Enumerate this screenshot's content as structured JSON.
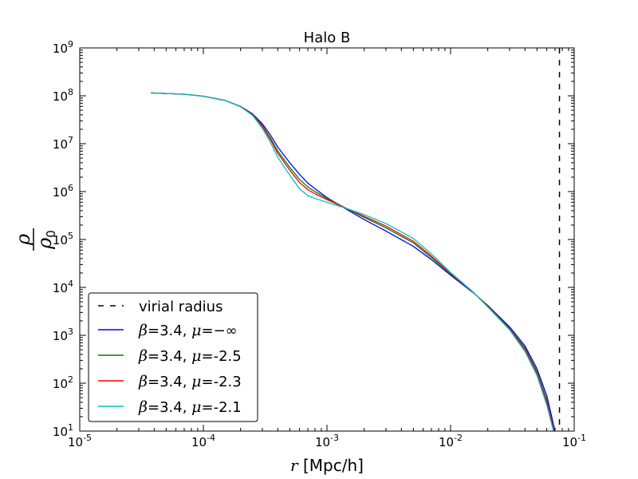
{
  "chart_data": {
    "type": "line",
    "title": "Halo B",
    "xlabel": {
      "symbol": "r",
      "text": " [Mpc/h]"
    },
    "ylabel": {
      "numerator": "ρ",
      "denominator": "ρ",
      "denominator_sub": "0"
    },
    "xscale": "log",
    "yscale": "log",
    "xlim": [
      1e-05,
      0.1
    ],
    "ylim": [
      10,
      1000000000
    ],
    "x_ticks": [
      {
        "base": "10",
        "exp": "-5",
        "value": 1e-05
      },
      {
        "base": "10",
        "exp": "-4",
        "value": 0.0001
      },
      {
        "base": "10",
        "exp": "-3",
        "value": 0.001
      },
      {
        "base": "10",
        "exp": "-2",
        "value": 0.01
      },
      {
        "base": "10",
        "exp": "-1",
        "value": 0.1
      }
    ],
    "y_ticks": [
      {
        "base": "10",
        "exp": "1",
        "value": 10
      },
      {
        "base": "10",
        "exp": "2",
        "value": 100
      },
      {
        "base": "10",
        "exp": "3",
        "value": 1000
      },
      {
        "base": "10",
        "exp": "4",
        "value": 10000
      },
      {
        "base": "10",
        "exp": "5",
        "value": 100000
      },
      {
        "base": "10",
        "exp": "6",
        "value": 1000000
      },
      {
        "base": "10",
        "exp": "7",
        "value": 10000000
      },
      {
        "base": "10",
        "exp": "8",
        "value": 100000000
      },
      {
        "base": "10",
        "exp": "9",
        "value": 1000000000
      }
    ],
    "grid": false,
    "legend_position": "bottom-left",
    "vline": {
      "name": "virial radius",
      "x": 0.076,
      "style": "dashed",
      "color": "#000000"
    },
    "series": [
      {
        "name": "β=3.4, μ=−∞",
        "label_parts": {
          "beta": "β",
          "beta_val": "=3.4, ",
          "mu": "μ",
          "mu_val": "=−∞"
        },
        "color": "#0000ff",
        "points": [
          [
            3.75e-05,
            115000000
          ],
          [
            7e-05,
            108000000
          ],
          [
            0.0001,
            98000000
          ],
          [
            0.00015,
            80000000
          ],
          [
            0.0002,
            60000000
          ],
          [
            0.00025,
            42000000
          ],
          [
            0.0003,
            26000000
          ],
          [
            0.00035,
            15000000
          ],
          [
            0.0004,
            8500000
          ],
          [
            0.0005,
            4000000
          ],
          [
            0.0006,
            2300000
          ],
          [
            0.0007,
            1500000
          ],
          [
            0.0008,
            1150000
          ],
          [
            0.001,
            750000
          ],
          [
            0.0015,
            400000
          ],
          [
            0.002,
            260000
          ],
          [
            0.003,
            150000
          ],
          [
            0.005,
            72000
          ],
          [
            0.007,
            38000
          ],
          [
            0.01,
            18000
          ],
          [
            0.015,
            8000
          ],
          [
            0.02,
            4200
          ],
          [
            0.03,
            1500
          ],
          [
            0.04,
            600
          ],
          [
            0.05,
            200
          ],
          [
            0.06,
            55
          ],
          [
            0.07,
            10
          ]
        ]
      },
      {
        "name": "β=3.4, μ=-2.5",
        "label_parts": {
          "beta": "β",
          "beta_val": "=3.4, ",
          "mu": "μ",
          "mu_val": "=-2.5"
        },
        "color": "#008000",
        "points": [
          [
            3.75e-05,
            115000000
          ],
          [
            7e-05,
            108000000
          ],
          [
            0.0001,
            98000000
          ],
          [
            0.00015,
            80000000
          ],
          [
            0.0002,
            60000000
          ],
          [
            0.00025,
            41000000
          ],
          [
            0.0003,
            24000000
          ],
          [
            0.00035,
            13000000
          ],
          [
            0.0004,
            7000000
          ],
          [
            0.0005,
            3200000
          ],
          [
            0.0006,
            1800000
          ],
          [
            0.0007,
            1250000
          ],
          [
            0.0008,
            1000000
          ],
          [
            0.001,
            720000
          ],
          [
            0.0015,
            420000
          ],
          [
            0.002,
            290000
          ],
          [
            0.003,
            175000
          ],
          [
            0.005,
            85000
          ],
          [
            0.007,
            42000
          ],
          [
            0.01,
            19000
          ],
          [
            0.015,
            8200
          ],
          [
            0.02,
            4100
          ],
          [
            0.03,
            1400
          ],
          [
            0.04,
            540
          ],
          [
            0.05,
            175
          ],
          [
            0.06,
            45
          ],
          [
            0.069,
            10
          ]
        ]
      },
      {
        "name": "β=3.4, μ=-2.3",
        "label_parts": {
          "beta": "β",
          "beta_val": "=3.4, ",
          "mu": "μ",
          "mu_val": "=-2.3"
        },
        "color": "#ff0000",
        "points": [
          [
            3.75e-05,
            115000000
          ],
          [
            7e-05,
            108000000
          ],
          [
            0.0001,
            98000000
          ],
          [
            0.00015,
            80000000
          ],
          [
            0.0002,
            60000000
          ],
          [
            0.00025,
            40000000
          ],
          [
            0.0003,
            23000000
          ],
          [
            0.00035,
            12000000
          ],
          [
            0.0004,
            6300000
          ],
          [
            0.0005,
            2800000
          ],
          [
            0.0006,
            1550000
          ],
          [
            0.0007,
            1100000
          ],
          [
            0.0008,
            900000
          ],
          [
            0.001,
            680000
          ],
          [
            0.0015,
            425000
          ],
          [
            0.002,
            305000
          ],
          [
            0.003,
            190000
          ],
          [
            0.005,
            92000
          ],
          [
            0.007,
            45000
          ],
          [
            0.01,
            19500
          ],
          [
            0.015,
            8200
          ],
          [
            0.02,
            4000
          ],
          [
            0.03,
            1350
          ],
          [
            0.04,
            500
          ],
          [
            0.05,
            160
          ],
          [
            0.06,
            40
          ],
          [
            0.069,
            10
          ]
        ]
      },
      {
        "name": "β=3.4, μ=-2.1",
        "label_parts": {
          "beta": "β",
          "beta_val": "=3.4, ",
          "mu": "μ",
          "mu_val": "=-2.1"
        },
        "color": "#00bfbf",
        "points": [
          [
            3.75e-05,
            115000000
          ],
          [
            7e-05,
            108000000
          ],
          [
            0.0001,
            98000000
          ],
          [
            0.00015,
            80000000
          ],
          [
            0.0002,
            59000000
          ],
          [
            0.00025,
            39000000
          ],
          [
            0.0003,
            21000000
          ],
          [
            0.00035,
            10500000
          ],
          [
            0.0004,
            5200000
          ],
          [
            0.0005,
            2200000
          ],
          [
            0.0006,
            1150000
          ],
          [
            0.0007,
            820000
          ],
          [
            0.0008,
            720000
          ],
          [
            0.001,
            600000
          ],
          [
            0.0015,
            430000
          ],
          [
            0.002,
            330000
          ],
          [
            0.003,
            215000
          ],
          [
            0.005,
            105000
          ],
          [
            0.007,
            50000
          ],
          [
            0.01,
            20500
          ],
          [
            0.015,
            8300
          ],
          [
            0.02,
            3900
          ],
          [
            0.03,
            1300
          ],
          [
            0.04,
            460
          ],
          [
            0.05,
            145
          ],
          [
            0.06,
            35
          ],
          [
            0.068,
            10
          ]
        ]
      }
    ]
  }
}
